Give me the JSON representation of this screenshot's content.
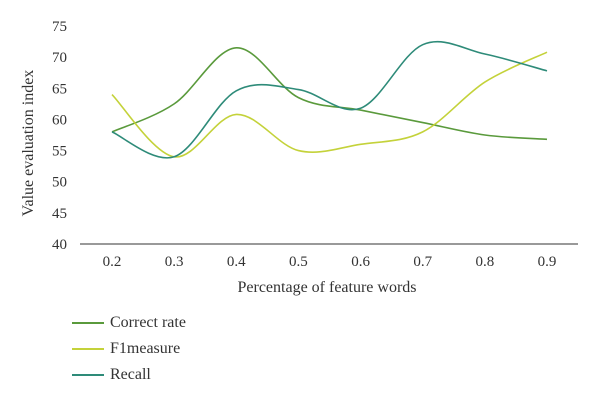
{
  "chart_data": {
    "type": "line",
    "xlabel": "Percentage of feature words",
    "ylabel": "Value evaluation index",
    "x": [
      0.2,
      0.3,
      0.4,
      0.5,
      0.6,
      0.7,
      0.8,
      0.9
    ],
    "x_ticks": [
      "0.2",
      "0.3",
      "0.4",
      "0.5",
      "0.6",
      "0.7",
      "0.8",
      "0.9"
    ],
    "ylim": [
      40,
      75
    ],
    "y_ticks": [
      "40",
      "45",
      "50",
      "55",
      "60",
      "65",
      "70",
      "75"
    ],
    "grid": false,
    "legend_position": "bottom-left",
    "series": [
      {
        "name": "Correct rate",
        "color": "#5a9a3c",
        "values": [
          58,
          62.5,
          71.5,
          63.5,
          61.5,
          59.5,
          57.5,
          56.8
        ]
      },
      {
        "name": "F1measure",
        "color": "#c4d23a",
        "values": [
          64,
          54,
          60.8,
          55,
          56,
          58,
          66,
          70.8
        ]
      },
      {
        "name": "Recall",
        "color": "#2e8b79",
        "values": [
          58,
          54,
          64.6,
          64.8,
          61.8,
          72,
          70.5,
          67.8
        ]
      }
    ]
  }
}
